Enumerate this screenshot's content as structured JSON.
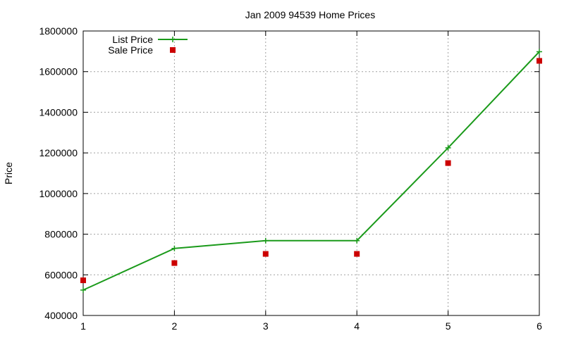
{
  "chart_data": {
    "type": "line",
    "title": "Jan 2009 94539 Home Prices",
    "xlabel": "",
    "ylabel": "Price",
    "x": [
      1,
      2,
      3,
      4,
      5,
      6
    ],
    "xlim": [
      1,
      6
    ],
    "ylim": [
      400000,
      1800000
    ],
    "xticks": [
      "1",
      "2",
      "3",
      "4",
      "5",
      "6"
    ],
    "yticks": [
      400000,
      600000,
      800000,
      1000000,
      1200000,
      1400000,
      1600000,
      1800000
    ],
    "ytick_labels": [
      "400000",
      "600000",
      "800000",
      "1000000",
      "1200000",
      "1400000",
      "1600000",
      "1800000"
    ],
    "grid": true,
    "legend_position": "top-left",
    "series": [
      {
        "name": "List Price",
        "style": "line-with-plus-markers",
        "color": "#1a9a1a",
        "values": [
          525000,
          730000,
          768000,
          768000,
          1225000,
          1698000
        ]
      },
      {
        "name": "Sale Price",
        "style": "square-markers",
        "color": "#cc0000",
        "values": [
          573000,
          658000,
          703000,
          703000,
          1150000,
          1653000
        ]
      }
    ]
  }
}
